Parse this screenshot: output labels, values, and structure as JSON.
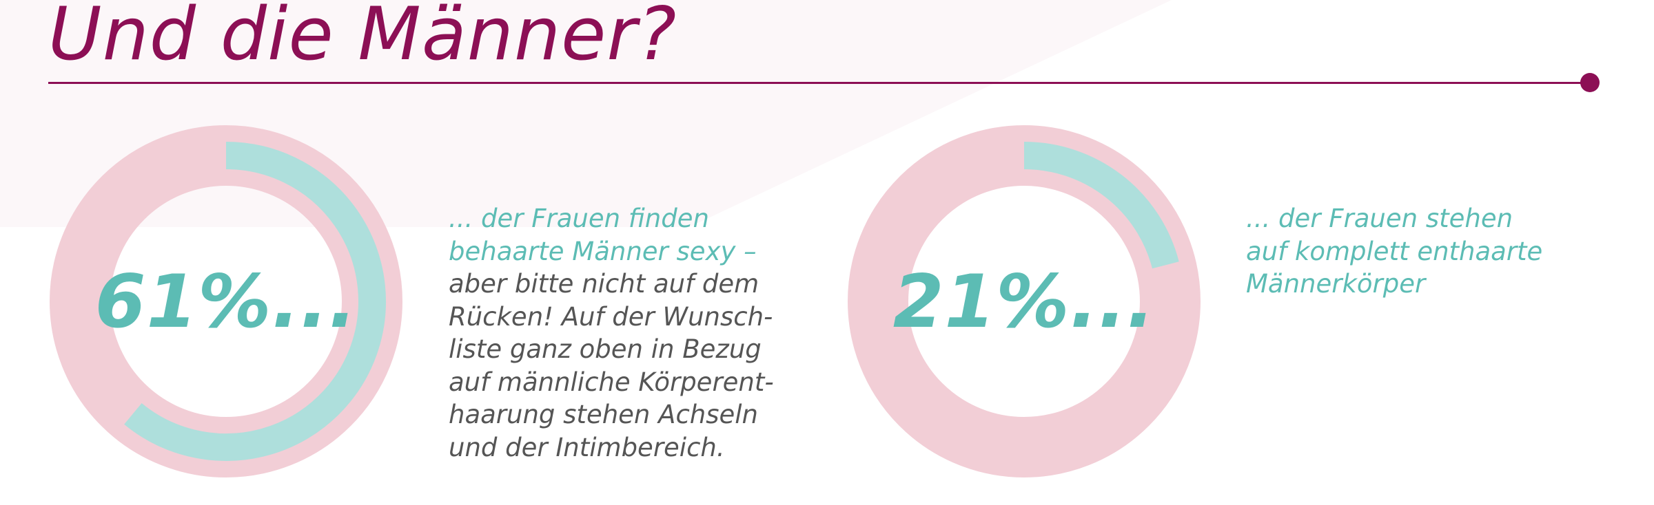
{
  "title": "Und die Männer?",
  "colors": {
    "accent": "#8c0f55",
    "teal": "#5cbcb4",
    "teal_light": "#aedfdc",
    "pink": "#f2ced6",
    "text_gray": "#555555"
  },
  "chart_data": [
    {
      "type": "pie",
      "value_percent": 61,
      "label": "61%...",
      "description_highlight": [
        "... der Frauen finden",
        "behaarte Männer sexy –"
      ],
      "description_body": [
        "aber bitte nicht auf dem",
        "Rücken! Auf der Wunsch-",
        "liste ganz oben in Bezug",
        "auf männliche Körperent-",
        "haarung stehen Achseln",
        "und der Intimbereich."
      ]
    },
    {
      "type": "pie",
      "value_percent": 21,
      "label": "21%...",
      "description_highlight": [
        "... der Frauen stehen",
        "auf komplett enthaarte",
        "Männerkörper"
      ],
      "description_body": []
    }
  ]
}
